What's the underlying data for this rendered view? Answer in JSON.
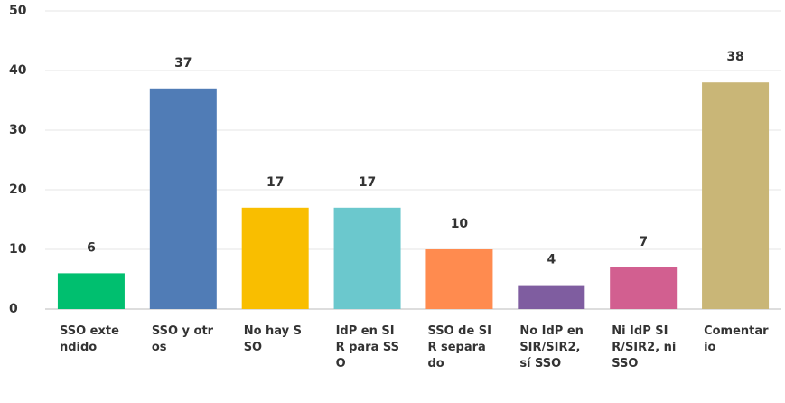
{
  "chart_data": {
    "type": "bar",
    "categories": [
      "SSO extendido",
      "SSO y otros",
      "No hay SSO",
      "IdP en SIR para SSO",
      "SSO de SIR separado",
      "No IdP en SIR/SIR2, sí SSO",
      "Ni IdP SIR/SIR2, ni SSO",
      "Comentario"
    ],
    "values": [
      6,
      37,
      17,
      17,
      10,
      4,
      7,
      38
    ],
    "colors": [
      "#00bf6f",
      "#507cb6",
      "#f9be00",
      "#6bc8cd",
      "#ff8b4f",
      "#7f5da0",
      "#d25f90",
      "#c9b677"
    ],
    "ylim": [
      0,
      50
    ],
    "yticks": [
      0,
      10,
      20,
      30,
      40,
      50
    ],
    "grid": true
  }
}
